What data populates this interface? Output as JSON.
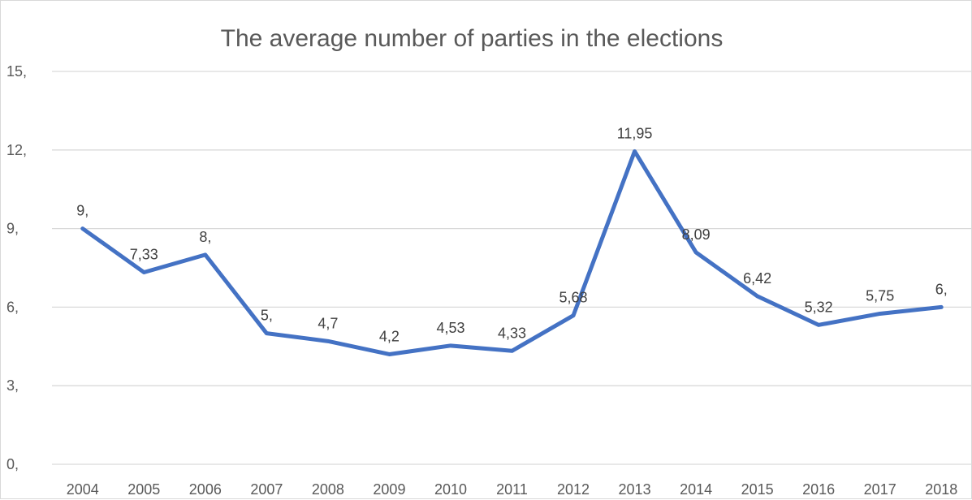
{
  "chart_data": {
    "type": "line",
    "title": "The average number of parties in the elections",
    "xlabel": "",
    "ylabel": "",
    "ylim": [
      0,
      15
    ],
    "yticks": [
      0,
      3,
      6,
      9,
      12,
      15
    ],
    "ytick_labels": [
      "0,",
      "3,",
      "6,",
      "9,",
      "12,",
      "15,"
    ],
    "grid": true,
    "legend": "none",
    "categories": [
      "2004",
      "2005",
      "2006",
      "2007",
      "2008",
      "2009",
      "2010",
      "2011",
      "2012",
      "2013",
      "2014",
      "2015",
      "2016",
      "2017",
      "2018"
    ],
    "series": [
      {
        "color": "#4472c4",
        "values": [
          9,
          7.33,
          8,
          5,
          4.7,
          4.2,
          4.53,
          4.33,
          5.68,
          11.95,
          8.09,
          6.42,
          5.32,
          5.75,
          6
        ],
        "labels": [
          "9,",
          "7,33",
          "8,",
          "5,",
          "4,7",
          "4,2",
          "4,53",
          "4,33",
          "5,68",
          "11,95",
          "8,09",
          "6,42",
          "5,32",
          "5,75",
          "6,"
        ]
      }
    ]
  }
}
